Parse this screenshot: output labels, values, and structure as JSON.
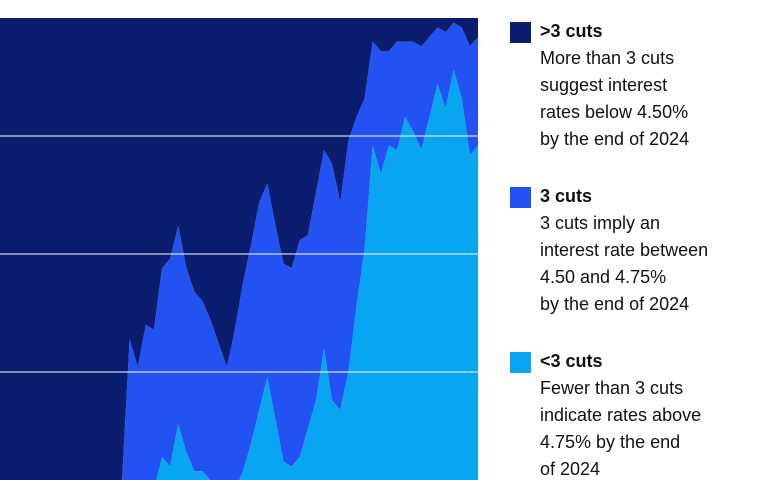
{
  "chart_data": {
    "type": "stacked_area",
    "categories": [
      null,
      null,
      null,
      null,
      null,
      null,
      null,
      null,
      null,
      null,
      null,
      null,
      null,
      null,
      null,
      null,
      null,
      null,
      null,
      null,
      null,
      null,
      null,
      null,
      null,
      null,
      null,
      null,
      null,
      null,
      null,
      null,
      null,
      null,
      null,
      null,
      null,
      null,
      null,
      null,
      null,
      null,
      null,
      null,
      null,
      null,
      null,
      null,
      null,
      null,
      null,
      null,
      null,
      null,
      null,
      null,
      null,
      null,
      null,
      null
    ],
    "ylim": [
      0,
      100
    ],
    "yticks": [
      25,
      50,
      75
    ],
    "grid": true,
    "grid_color": "#ffffff",
    "legend": "right",
    "series": [
      {
        "name": "<3 cuts",
        "color": "#08a6f0",
        "description": [
          "Fewer than 3 cuts",
          "indicate rates above",
          "4.75% by the end",
          "of 2024"
        ],
        "values": [
          0,
          0,
          0,
          0,
          0,
          0,
          0,
          0,
          0,
          0,
          0,
          0,
          0,
          0,
          0,
          0,
          0,
          0,
          0,
          0,
          7,
          5,
          14,
          8,
          4,
          4,
          2,
          0,
          0,
          0,
          4,
          10,
          17,
          24,
          15,
          6,
          5,
          7,
          13,
          19,
          30,
          19,
          17,
          25,
          39,
          51,
          73,
          67,
          73,
          72,
          79,
          76,
          72,
          79,
          86,
          81,
          89,
          83,
          71,
          73
        ]
      },
      {
        "name": "3 cuts",
        "color": "#2352f2",
        "description": [
          "3 cuts imply an",
          "interest rate between",
          "4.50 and 4.75%",
          "by the end of 2024"
        ],
        "values": [
          0,
          0,
          0,
          0,
          0,
          0,
          0,
          0,
          0,
          0,
          0,
          0,
          0,
          0,
          0,
          0,
          32,
          26,
          35,
          34,
          40,
          44,
          42,
          39,
          38,
          36,
          34,
          31,
          26,
          34,
          40,
          42,
          44,
          41,
          41,
          42,
          42,
          46,
          41,
          44,
          42,
          50,
          44,
          49,
          40,
          32,
          22,
          26,
          20,
          23,
          16,
          19,
          22,
          17,
          12,
          16,
          10,
          15,
          23,
          23
        ]
      },
      {
        "name": ">3 cuts",
        "color": "#0b1d6e",
        "description": [
          "More than 3 cuts",
          "suggest interest",
          "rates below 4.50%",
          "by the end of 2024"
        ],
        "values": [
          100,
          100,
          100,
          100,
          100,
          100,
          100,
          100,
          100,
          100,
          100,
          100,
          100,
          100,
          100,
          100,
          68,
          74,
          65,
          66,
          53,
          51,
          44,
          53,
          58,
          60,
          64,
          69,
          74,
          66,
          56,
          48,
          39,
          35,
          44,
          52,
          53,
          47,
          46,
          37,
          28,
          31,
          39,
          26,
          21,
          17,
          5,
          7,
          7,
          5,
          5,
          5,
          6,
          4,
          2,
          3,
          1,
          2,
          6,
          4
        ]
      }
    ]
  }
}
